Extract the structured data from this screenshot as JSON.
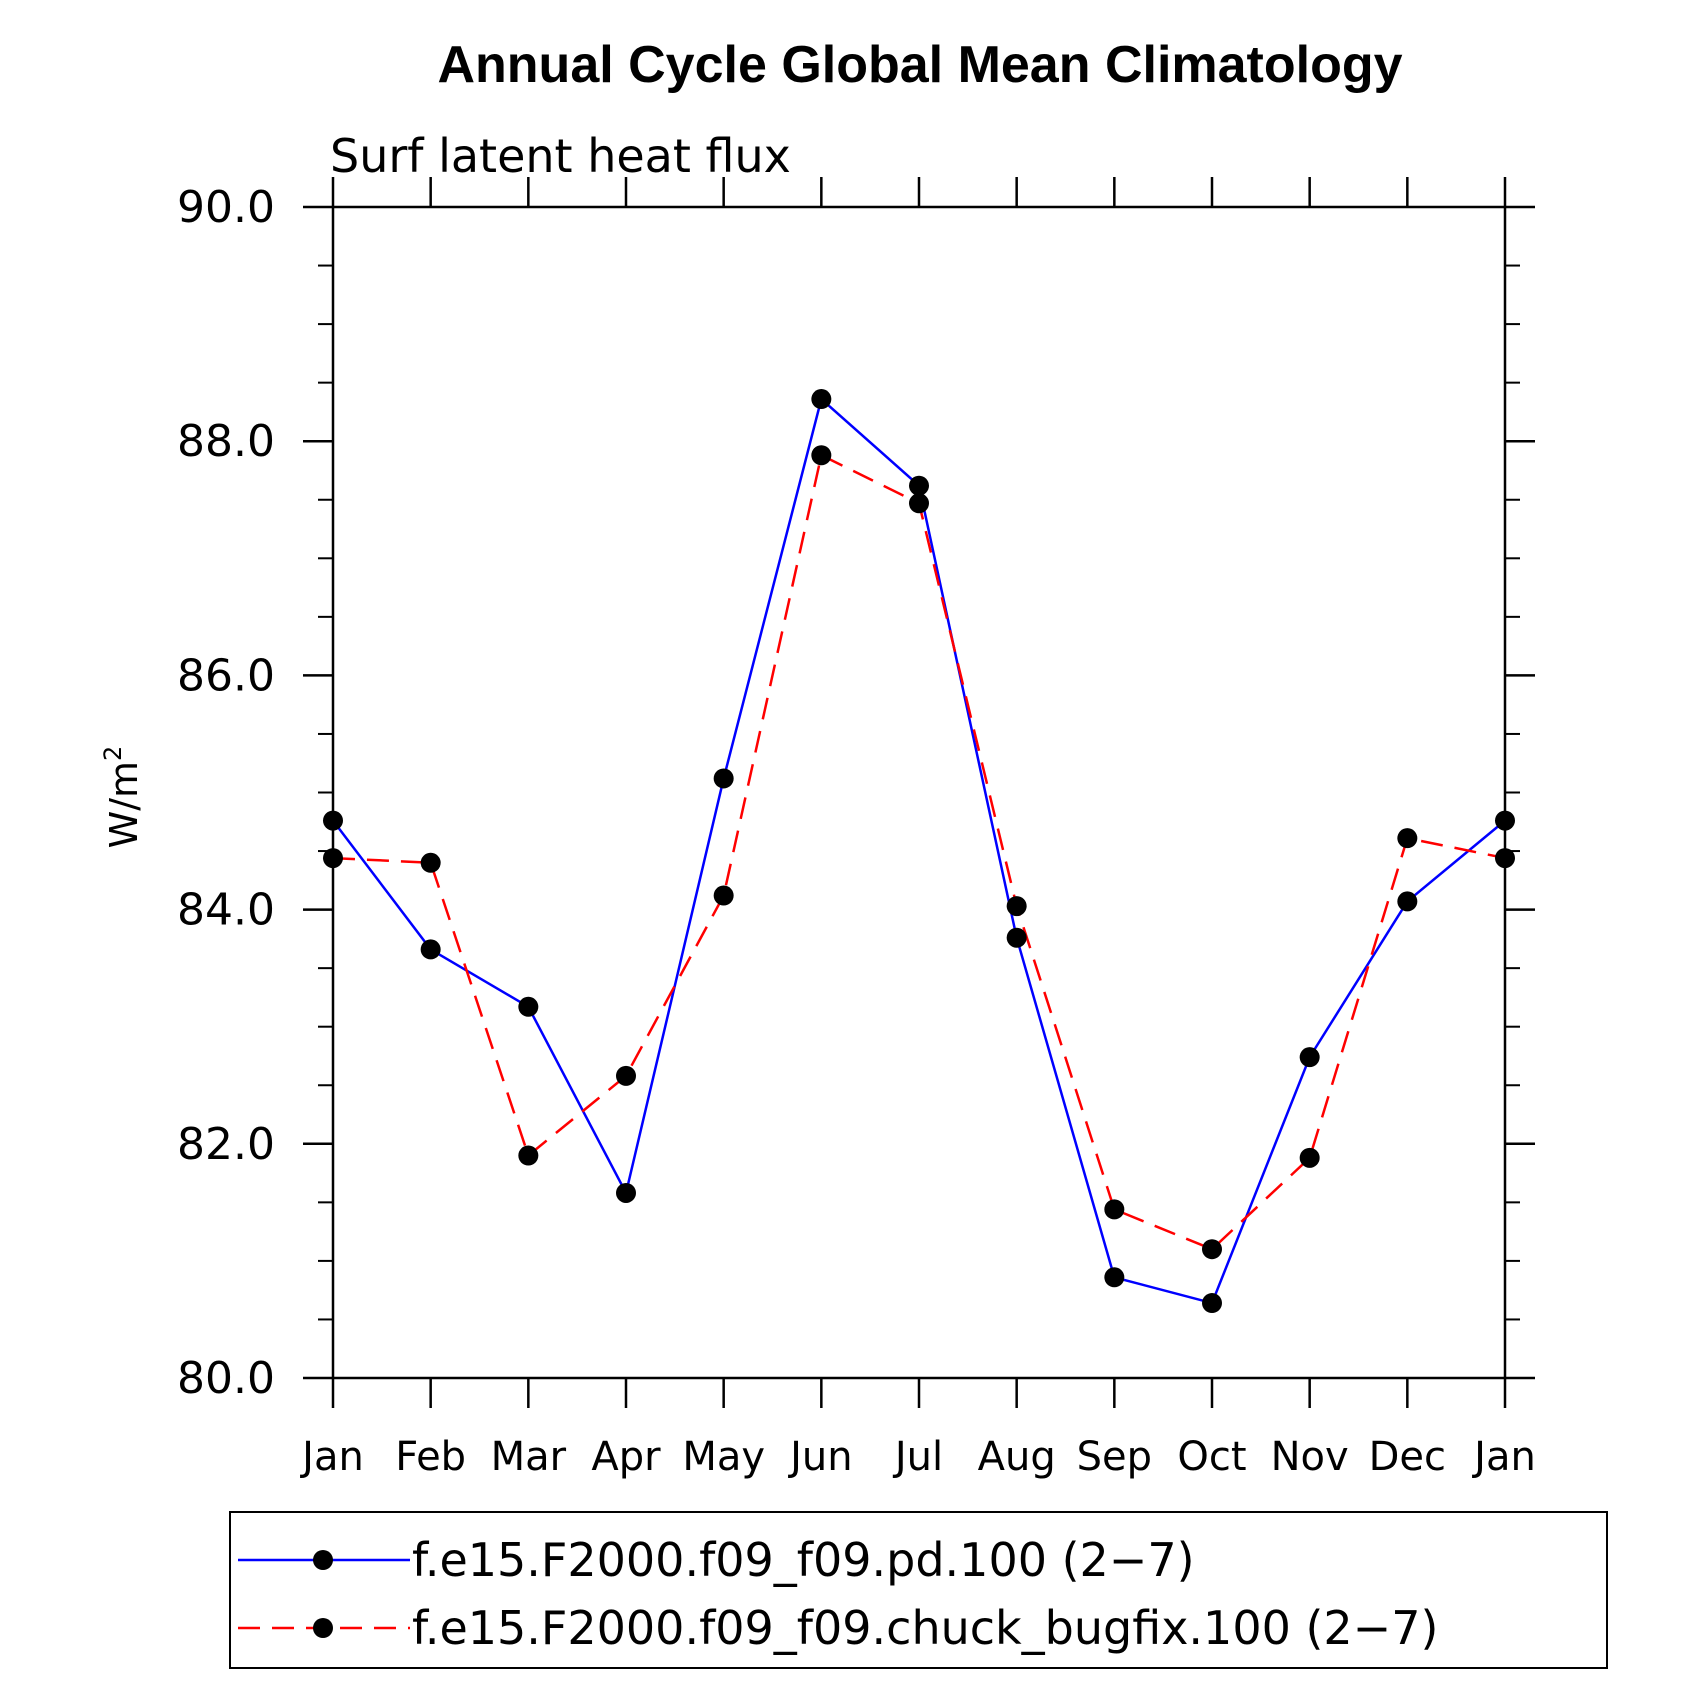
{
  "chart_data": {
    "type": "line",
    "title": "Annual Cycle Global Mean Climatology",
    "subtitle": "Surf latent heat flux",
    "ylabel": "W/m",
    "ylabel_superscript": "2",
    "ylim": [
      80,
      90
    ],
    "yticks": [
      "80.0",
      "82.0",
      "84.0",
      "86.0",
      "88.0",
      "90.0"
    ],
    "yticks_values": [
      80,
      82,
      84,
      86,
      88,
      90
    ],
    "categories": [
      "Jan",
      "Feb",
      "Mar",
      "Apr",
      "May",
      "Jun",
      "Jul",
      "Aug",
      "Sep",
      "Oct",
      "Nov",
      "Dec",
      "Jan"
    ],
    "series": [
      {
        "name": "f.e15.F2000.f09_f09.pd.100 (2−7)",
        "color": "#0000ff",
        "dash": "solid",
        "values": [
          84.76,
          83.66,
          83.17,
          81.58,
          85.12,
          88.36,
          87.62,
          83.76,
          80.86,
          80.64,
          82.74,
          84.07,
          84.76
        ]
      },
      {
        "name": "f.e15.F2000.f09_f09.chuck_bugfix.100 (2−7)",
        "color": "#ff0000",
        "dash": "dashed",
        "values": [
          84.44,
          84.4,
          81.9,
          82.58,
          84.12,
          87.88,
          87.47,
          84.03,
          81.44,
          81.1,
          81.88,
          84.61,
          84.44
        ]
      }
    ]
  }
}
